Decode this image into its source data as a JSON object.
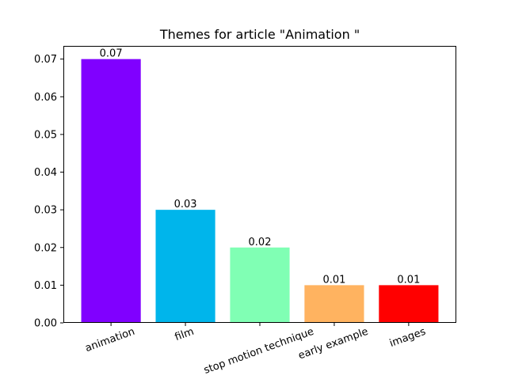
{
  "chart_data": {
    "type": "bar",
    "title": "Themes for article \"Animation \"",
    "xlabel": "",
    "ylabel": "",
    "categories": [
      "animation",
      "film",
      "stop motion technique",
      "early example",
      "images"
    ],
    "values": [
      0.07,
      0.03,
      0.02,
      0.01,
      0.01
    ],
    "value_labels": [
      "0.07",
      "0.03",
      "0.02",
      "0.01",
      "0.01"
    ],
    "colors": [
      "#8000ff",
      "#00b5eb",
      "#80ffb4",
      "#ffb360",
      "#ff0000"
    ],
    "ylim": [
      0,
      0.0735
    ],
    "yticks": [
      0,
      0.01,
      0.02,
      0.03,
      0.04,
      0.05,
      0.06,
      0.07
    ],
    "ytick_labels": [
      "0.00",
      "0.01",
      "0.02",
      "0.03",
      "0.04",
      "0.05",
      "0.06",
      "0.07"
    ],
    "xtick_rotation_deg": 20,
    "grid": false,
    "legend": "none"
  }
}
